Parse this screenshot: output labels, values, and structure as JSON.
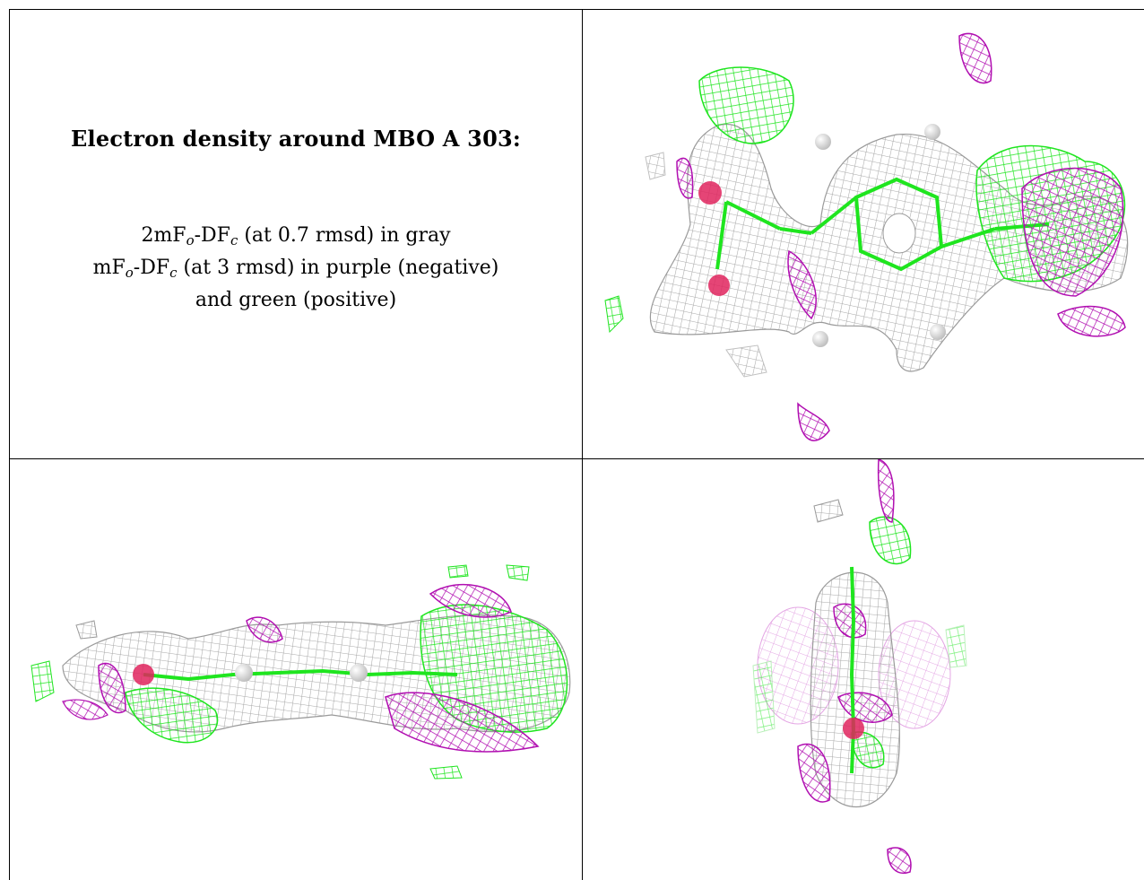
{
  "legend": {
    "title": "Electron density around MBO A 303:",
    "line1_main": "2mF",
    "line1_sub": "o",
    "line1_mid": "-DF",
    "line1_sub2": "c",
    "line1_rest": " (at 0.7 rmsd) in gray",
    "line2_main": "mF",
    "line2_sub": "o",
    "line2_mid": "-DF",
    "line2_sub2": "c",
    "line2_rest": " (at 3 rmsd) in purple (negative)",
    "line3": "and green (positive)"
  },
  "colors": {
    "map_2fofc": "#9a9a9a",
    "map_fofc_negative": "#b10fb1",
    "map_fofc_positive": "#1fe51f",
    "oxygen": "#e0245e",
    "hydrogen": "#e8e8e8"
  },
  "panels": [
    {
      "view": "view-1"
    },
    {
      "view": "view-2"
    },
    {
      "view": "view-3"
    }
  ]
}
